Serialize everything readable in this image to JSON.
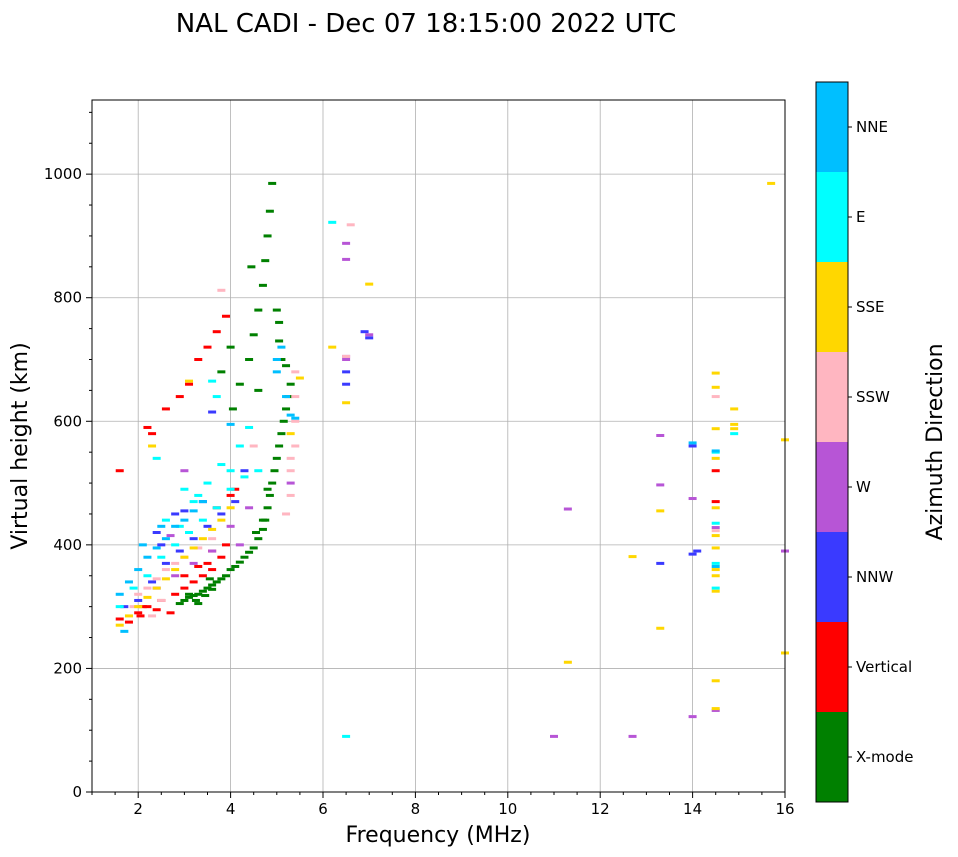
{
  "chart_data": {
    "type": "scatter",
    "title": "NAL CADI - Dec 07 18:15:00 2022 UTC",
    "xlabel": "Frequency (MHz)",
    "ylabel": "Virtual height (km)",
    "xlim": [
      1.0,
      16.0
    ],
    "ylim": [
      0,
      1120
    ],
    "xticks": [
      2,
      4,
      6,
      8,
      10,
      12,
      14,
      16
    ],
    "yticks": [
      0,
      200,
      400,
      600,
      800,
      1000
    ],
    "grid": true,
    "colorbar": {
      "label": "Azimuth Direction",
      "categories": [
        {
          "name": "X-mode",
          "color": "#008000"
        },
        {
          "name": "Vertical",
          "color": "#ff0000"
        },
        {
          "name": "NNW",
          "color": "#3a3aff"
        },
        {
          "name": "W",
          "color": "#b755d6"
        },
        {
          "name": "SSW",
          "color": "#ffb6c1"
        },
        {
          "name": "SSE",
          "color": "#ffd700"
        },
        {
          "name": "E",
          "color": "#00ffff"
        },
        {
          "name": "NNE",
          "color": "#00bfff"
        }
      ]
    },
    "series": [
      {
        "name": "X-mode",
        "points": [
          [
            2.9,
            305
          ],
          [
            3.0,
            310
          ],
          [
            3.1,
            315
          ],
          [
            3.2,
            318
          ],
          [
            3.3,
            320
          ],
          [
            3.4,
            325
          ],
          [
            3.5,
            330
          ],
          [
            3.6,
            335
          ],
          [
            3.7,
            340
          ],
          [
            3.8,
            345
          ],
          [
            3.9,
            350
          ],
          [
            4.0,
            360
          ],
          [
            4.1,
            365
          ],
          [
            4.2,
            372
          ],
          [
            4.3,
            380
          ],
          [
            4.4,
            388
          ],
          [
            4.5,
            395
          ],
          [
            4.6,
            410
          ],
          [
            4.7,
            425
          ],
          [
            4.75,
            440
          ],
          [
            4.8,
            460
          ],
          [
            4.85,
            480
          ],
          [
            4.9,
            500
          ],
          [
            4.95,
            520
          ],
          [
            5.0,
            540
          ],
          [
            5.05,
            560
          ],
          [
            5.1,
            580
          ],
          [
            5.15,
            600
          ],
          [
            5.2,
            620
          ],
          [
            5.25,
            640
          ],
          [
            5.3,
            660
          ],
          [
            4.05,
            620
          ],
          [
            4.2,
            660
          ],
          [
            4.4,
            700
          ],
          [
            4.5,
            740
          ],
          [
            4.6,
            780
          ],
          [
            4.7,
            820
          ],
          [
            4.75,
            860
          ],
          [
            4.8,
            900
          ],
          [
            4.85,
            940
          ],
          [
            4.9,
            985
          ],
          [
            4.0,
            720
          ],
          [
            3.8,
            680
          ],
          [
            5.0,
            780
          ],
          [
            5.05,
            730
          ],
          [
            4.6,
            650
          ],
          [
            3.3,
            305
          ],
          [
            3.45,
            318
          ],
          [
            3.6,
            328
          ],
          [
            4.55,
            420
          ],
          [
            4.7,
            440
          ],
          [
            4.8,
            490
          ],
          [
            5.1,
            700
          ],
          [
            5.2,
            690
          ],
          [
            3.1,
            320
          ],
          [
            3.25,
            310
          ],
          [
            3.55,
            345
          ],
          [
            4.45,
            850
          ],
          [
            5.05,
            760
          ]
        ]
      },
      {
        "name": "Vertical",
        "points": [
          [
            1.6,
            280
          ],
          [
            1.8,
            275
          ],
          [
            2.0,
            290
          ],
          [
            2.2,
            300
          ],
          [
            2.5,
            310
          ],
          [
            2.8,
            320
          ],
          [
            3.0,
            330
          ],
          [
            3.2,
            340
          ],
          [
            3.4,
            350
          ],
          [
            3.6,
            360
          ],
          [
            3.8,
            380
          ],
          [
            3.6,
            390
          ],
          [
            3.9,
            400
          ],
          [
            4.0,
            480
          ],
          [
            4.1,
            490
          ],
          [
            2.3,
            580
          ],
          [
            2.6,
            620
          ],
          [
            2.9,
            640
          ],
          [
            3.1,
            660
          ],
          [
            3.3,
            700
          ],
          [
            3.5,
            720
          ],
          [
            3.7,
            745
          ],
          [
            3.9,
            770
          ],
          [
            1.6,
            520
          ],
          [
            2.1,
            300
          ],
          [
            2.4,
            295
          ],
          [
            2.7,
            290
          ],
          [
            3.0,
            350
          ],
          [
            3.3,
            365
          ],
          [
            3.5,
            370
          ],
          [
            14.5,
            520
          ],
          [
            14.5,
            470
          ],
          [
            3.7,
            460
          ],
          [
            2.2,
            590
          ],
          [
            2.05,
            285
          ]
        ]
      },
      {
        "name": "NNW",
        "points": [
          [
            1.7,
            300
          ],
          [
            2.0,
            310
          ],
          [
            2.3,
            340
          ],
          [
            2.6,
            370
          ],
          [
            2.9,
            390
          ],
          [
            3.2,
            410
          ],
          [
            3.5,
            430
          ],
          [
            3.8,
            450
          ],
          [
            4.1,
            470
          ],
          [
            2.4,
            420
          ],
          [
            2.8,
            450
          ],
          [
            3.4,
            470
          ],
          [
            6.5,
            660
          ],
          [
            6.5,
            680
          ],
          [
            6.9,
            745
          ],
          [
            7.0,
            735
          ],
          [
            13.3,
            370
          ],
          [
            14.1,
            390
          ],
          [
            14.0,
            385
          ],
          [
            14.0,
            560
          ],
          [
            4.3,
            520
          ],
          [
            3.0,
            455
          ],
          [
            2.5,
            400
          ],
          [
            3.6,
            615
          ]
        ]
      },
      {
        "name": "W",
        "points": [
          [
            2.4,
            330
          ],
          [
            2.8,
            350
          ],
          [
            3.2,
            370
          ],
          [
            3.6,
            390
          ],
          [
            4.0,
            430
          ],
          [
            4.4,
            460
          ],
          [
            6.5,
            700
          ],
          [
            6.5,
            705
          ],
          [
            6.5,
            862
          ],
          [
            6.5,
            888
          ],
          [
            7.0,
            740
          ],
          [
            11.3,
            458
          ],
          [
            11.0,
            90
          ],
          [
            12.7,
            90
          ],
          [
            13.3,
            577
          ],
          [
            13.3,
            497
          ],
          [
            14.0,
            122
          ],
          [
            14.0,
            475
          ],
          [
            14.5,
            428
          ],
          [
            14.5,
            132
          ],
          [
            16.0,
            390
          ],
          [
            3.0,
            520
          ],
          [
            2.7,
            415
          ],
          [
            4.2,
            400
          ],
          [
            5.3,
            500
          ]
        ]
      },
      {
        "name": "SSW",
        "points": [
          [
            2.0,
            320
          ],
          [
            2.2,
            330
          ],
          [
            2.4,
            345
          ],
          [
            2.6,
            360
          ],
          [
            2.8,
            370
          ],
          [
            3.0,
            380
          ],
          [
            3.3,
            395
          ],
          [
            3.6,
            410
          ],
          [
            5.2,
            450
          ],
          [
            5.3,
            480
          ],
          [
            5.3,
            520
          ],
          [
            5.3,
            540
          ],
          [
            5.4,
            560
          ],
          [
            5.4,
            600
          ],
          [
            5.4,
            640
          ],
          [
            5.4,
            680
          ],
          [
            6.6,
            918
          ],
          [
            3.8,
            812
          ],
          [
            6.5,
            705
          ],
          [
            2.5,
            310
          ],
          [
            1.9,
            300
          ],
          [
            2.3,
            285
          ],
          [
            14.5,
            423
          ],
          [
            14.5,
            640
          ],
          [
            4.5,
            560
          ]
        ]
      },
      {
        "name": "SSE",
        "points": [
          [
            1.6,
            270
          ],
          [
            1.8,
            285
          ],
          [
            2.0,
            300
          ],
          [
            2.2,
            315
          ],
          [
            2.4,
            330
          ],
          [
            2.6,
            345
          ],
          [
            2.8,
            360
          ],
          [
            3.0,
            380
          ],
          [
            3.2,
            395
          ],
          [
            3.4,
            410
          ],
          [
            3.6,
            425
          ],
          [
            3.8,
            440
          ],
          [
            4.0,
            460
          ],
          [
            6.2,
            720
          ],
          [
            6.5,
            630
          ],
          [
            7.0,
            822
          ],
          [
            11.3,
            210
          ],
          [
            12.7,
            381
          ],
          [
            13.3,
            265
          ],
          [
            13.3,
            455
          ],
          [
            14.5,
            180
          ],
          [
            14.5,
            135
          ],
          [
            14.5,
            325
          ],
          [
            14.5,
            350
          ],
          [
            14.5,
            360
          ],
          [
            14.5,
            395
          ],
          [
            14.5,
            415
          ],
          [
            14.5,
            460
          ],
          [
            14.5,
            540
          ],
          [
            14.5,
            588
          ],
          [
            14.5,
            655
          ],
          [
            14.5,
            678
          ],
          [
            14.9,
            588
          ],
          [
            14.9,
            595
          ],
          [
            14.9,
            620
          ],
          [
            15.7,
            985
          ],
          [
            16.0,
            570
          ],
          [
            16.0,
            225
          ],
          [
            5.5,
            670
          ],
          [
            5.3,
            580
          ],
          [
            2.3,
            560
          ],
          [
            3.1,
            665
          ]
        ]
      },
      {
        "name": "E",
        "points": [
          [
            1.6,
            300
          ],
          [
            1.9,
            330
          ],
          [
            2.2,
            350
          ],
          [
            2.5,
            380
          ],
          [
            2.8,
            400
          ],
          [
            3.1,
            420
          ],
          [
            3.4,
            440
          ],
          [
            3.7,
            460
          ],
          [
            4.0,
            490
          ],
          [
            4.3,
            510
          ],
          [
            4.6,
            520
          ],
          [
            3.2,
            470
          ],
          [
            3.5,
            500
          ],
          [
            3.8,
            530
          ],
          [
            4.2,
            560
          ],
          [
            4.4,
            590
          ],
          [
            3.0,
            490
          ],
          [
            3.7,
            640
          ],
          [
            3.6,
            665
          ],
          [
            6.2,
            922
          ],
          [
            6.5,
            90
          ],
          [
            14.5,
            330
          ],
          [
            14.5,
            370
          ],
          [
            14.5,
            435
          ],
          [
            14.5,
            550
          ],
          [
            14.9,
            580
          ],
          [
            2.4,
            540
          ],
          [
            2.6,
            440
          ],
          [
            2.9,
            430
          ],
          [
            3.3,
            480
          ],
          [
            4.0,
            520
          ]
        ]
      },
      {
        "name": "NNE",
        "points": [
          [
            1.6,
            320
          ],
          [
            1.8,
            340
          ],
          [
            2.0,
            360
          ],
          [
            2.2,
            380
          ],
          [
            2.4,
            395
          ],
          [
            2.6,
            410
          ],
          [
            2.8,
            430
          ],
          [
            3.0,
            440
          ],
          [
            3.2,
            455
          ],
          [
            3.4,
            470
          ],
          [
            1.7,
            260
          ],
          [
            5.0,
            680
          ],
          [
            5.0,
            700
          ],
          [
            5.1,
            720
          ],
          [
            5.4,
            605
          ],
          [
            5.3,
            610
          ],
          [
            14.0,
            565
          ],
          [
            14.5,
            552
          ],
          [
            14.5,
            365
          ],
          [
            4.0,
            595
          ],
          [
            2.1,
            400
          ],
          [
            2.5,
            430
          ],
          [
            5.2,
            640
          ]
        ]
      }
    ]
  }
}
